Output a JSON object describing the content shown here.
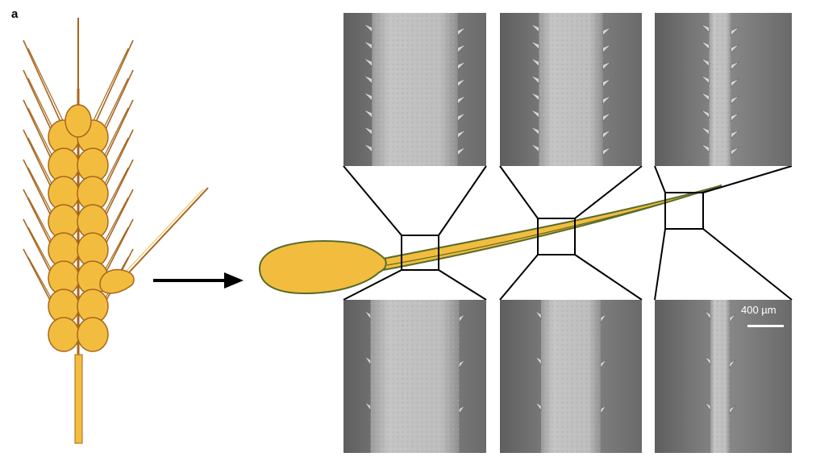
{
  "figure": {
    "panel_label": "a",
    "scale_bar_label": "400 µm"
  },
  "colors": {
    "grain_fill": "#f2bd3e",
    "grain_stroke": "#a8661e",
    "awn_outline": "#5b6b2a",
    "sem_background": "#7a7a7a",
    "sem_fiber": "#b3b3b3",
    "frame_line": "#000000"
  },
  "micrographs": {
    "top": [
      "awn-base",
      "awn-middle",
      "awn-tip"
    ],
    "bottom": [
      "awn-base",
      "awn-middle",
      "awn-tip"
    ]
  }
}
